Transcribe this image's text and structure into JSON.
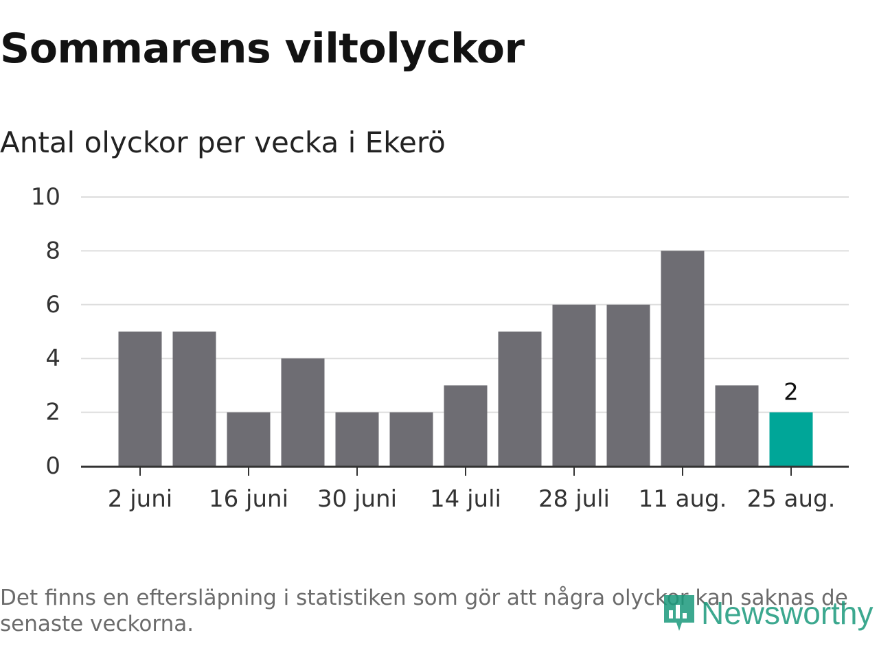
{
  "header": {
    "title": "Sommarens viltolyckor",
    "subtitle": "Antal olyckor per vecka i Ekerö"
  },
  "footnote": "Det finns en eftersläpning i statistiken som gör att några olyckor kan saknas de senaste veckorna.",
  "brand": {
    "name": "Newsworthy",
    "color": "#1b9a7c"
  },
  "colors": {
    "bar": "#6e6d73",
    "highlight": "#00a698",
    "grid": "#dddddd",
    "axis": "#333333",
    "text": "#333333"
  },
  "chart_data": {
    "type": "bar",
    "title": "Sommarens viltolyckor",
    "subtitle": "Antal olyckor per vecka i Ekerö",
    "xlabel": "",
    "ylabel": "",
    "ylim": [
      0,
      10
    ],
    "yticks": [
      0,
      2,
      4,
      6,
      8,
      10
    ],
    "grid": true,
    "values": [
      5,
      5,
      2,
      4,
      2,
      2,
      3,
      5,
      6,
      6,
      8,
      3,
      2
    ],
    "xticks": [
      {
        "index": 0,
        "label": "2 juni"
      },
      {
        "index": 2,
        "label": "16 juni"
      },
      {
        "index": 4,
        "label": "30 juni"
      },
      {
        "index": 6,
        "label": "14 juli"
      },
      {
        "index": 8,
        "label": "28 juli"
      },
      {
        "index": 10,
        "label": "11 aug."
      },
      {
        "index": 12,
        "label": "25 aug."
      }
    ],
    "highlight_index": 12,
    "data_labels": [
      {
        "index": 12,
        "text": "2"
      }
    ]
  }
}
